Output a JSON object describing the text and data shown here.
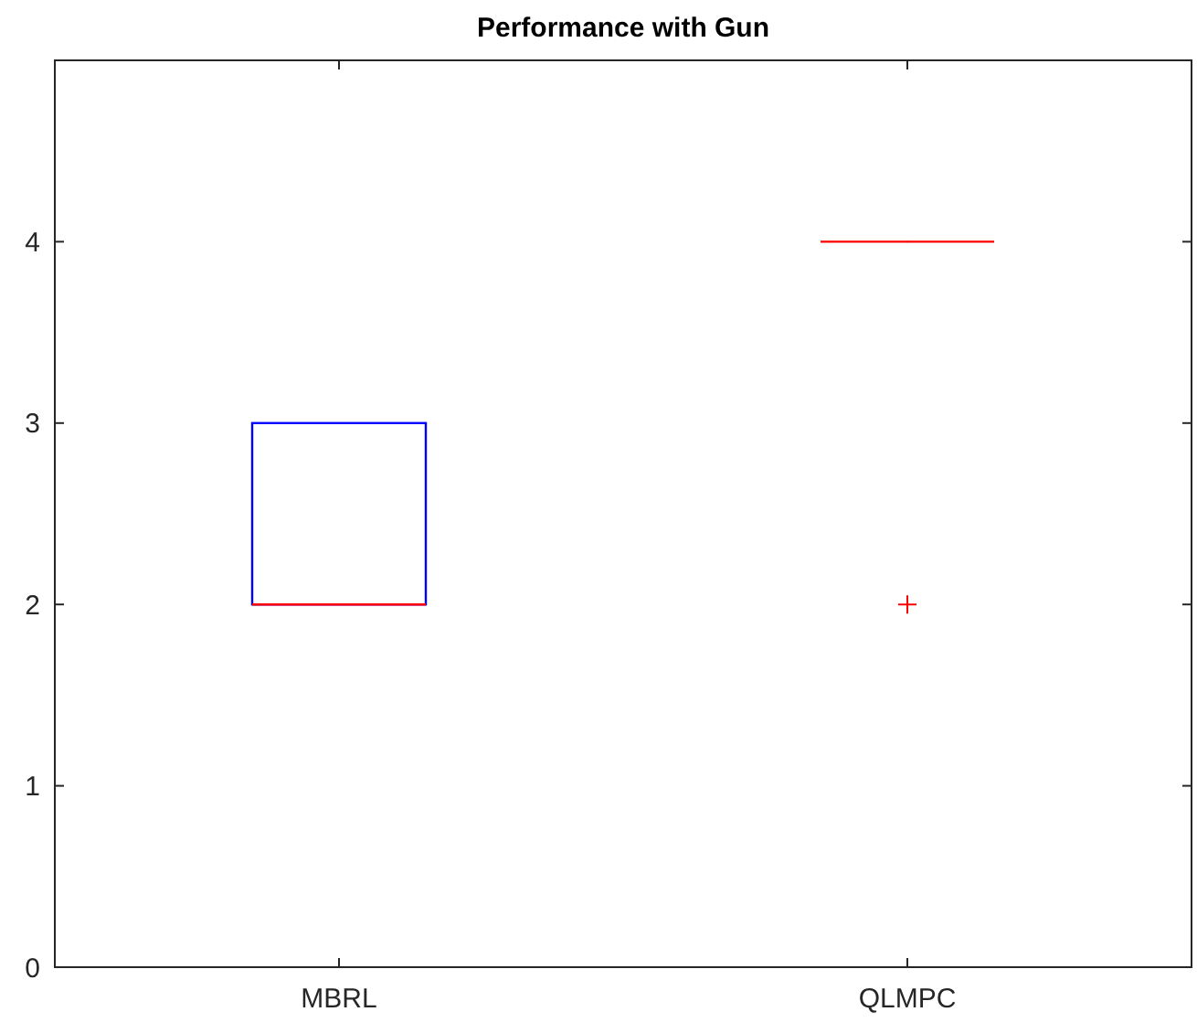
{
  "chart_data": {
    "type": "box",
    "title": "Performance with Gun",
    "categories": [
      "MBRL",
      "QLMPC"
    ],
    "series": [
      {
        "colors": [
          "#0000ff",
          "#ff0000"
        ],
        "boxes": [
          {
            "low": 2,
            "q1": 2,
            "median": 2,
            "q3": 3,
            "high": 3
          },
          {
            "low": 4,
            "q1": 4,
            "median": 4,
            "q3": 4,
            "high": 4,
            "outliers": [
              2
            ]
          }
        ]
      }
    ],
    "ylim": [
      0,
      5
    ],
    "yticks": [
      0,
      1,
      2,
      3,
      4
    ],
    "grid": false,
    "marker": "cross"
  }
}
